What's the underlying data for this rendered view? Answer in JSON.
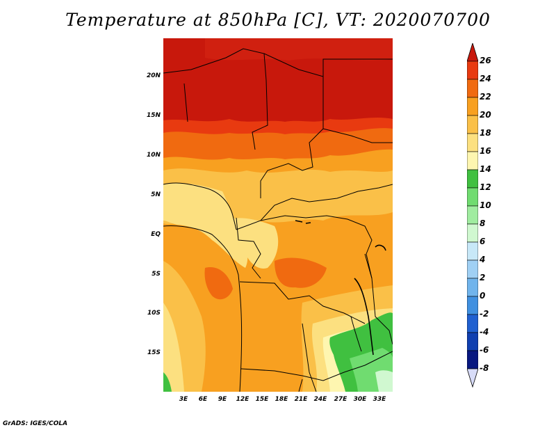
{
  "title": "Temperature at 850hPa [C], VT: 2020070700",
  "credit": "GrADS: IGES/COLA",
  "y_ticks": [
    "20N",
    "15N",
    "10N",
    "5N",
    "EQ",
    "5S",
    "10S",
    "15S"
  ],
  "x_ticks": [
    "3E",
    "6E",
    "9E",
    "12E",
    "15E",
    "18E",
    "21E",
    "24E",
    "27E",
    "30E",
    "33E"
  ],
  "colorbar": {
    "labels": [
      "26",
      "24",
      "22",
      "20",
      "18",
      "16",
      "14",
      "12",
      "10",
      "8",
      "6",
      "4",
      "2",
      "0",
      "-2",
      "-4",
      "-6",
      "-8"
    ],
    "colors": [
      "#c8180c",
      "#e83a10",
      "#f06a10",
      "#f8a020",
      "#fac048",
      "#fce080",
      "#fef6b0",
      "#40c040",
      "#70dc70",
      "#a0eca0",
      "#d0f8d0",
      "#c8e8f8",
      "#a0d0f4",
      "#70b4ec",
      "#4090e0",
      "#2060d0",
      "#1040b0",
      "#081880",
      "#d8dcf8"
    ]
  }
}
